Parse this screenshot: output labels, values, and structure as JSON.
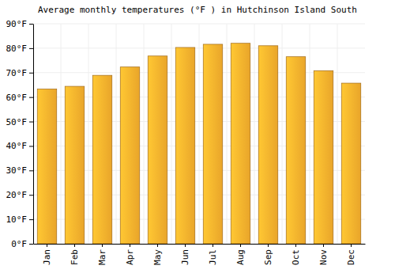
{
  "chart_data": {
    "type": "bar",
    "title": "Average monthly temperatures (°F ) in Hutchinson Island South",
    "categories": [
      "Jan",
      "Feb",
      "Mar",
      "Apr",
      "May",
      "Jun",
      "Jul",
      "Aug",
      "Sep",
      "Oct",
      "Nov",
      "Dec"
    ],
    "values": [
      63.3,
      64.4,
      68.9,
      72.3,
      76.8,
      80.3,
      81.6,
      82.0,
      81.0,
      76.5,
      70.8,
      65.7
    ],
    "color": "#ffb42e",
    "ylim": [
      0,
      90
    ],
    "yticks": [
      {
        "value": 0,
        "label": "0°F"
      },
      {
        "value": 10,
        "label": "10°F"
      },
      {
        "value": 20,
        "label": "20°F"
      },
      {
        "value": 30,
        "label": "30°F"
      },
      {
        "value": 40,
        "label": "40°F"
      },
      {
        "value": 50,
        "label": "50°F"
      },
      {
        "value": 60,
        "label": "60°F"
      },
      {
        "value": 70,
        "label": "70°F"
      },
      {
        "value": 80,
        "label": "80°F"
      },
      {
        "value": 90,
        "label": "90°F"
      }
    ],
    "grid": true
  }
}
